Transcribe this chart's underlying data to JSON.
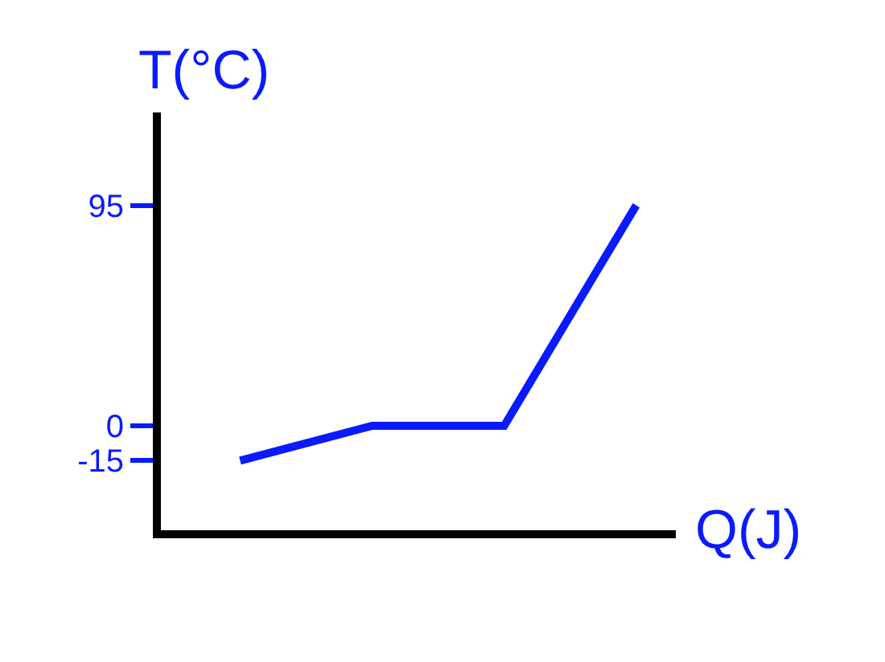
{
  "chart_data": {
    "type": "line",
    "xlabel": "Q(J)",
    "ylabel": "T(°C)",
    "categories": [
      null,
      null,
      null,
      null
    ],
    "series": [
      {
        "color": "#0a1aff",
        "values": [
          -15,
          0,
          0,
          95
        ]
      }
    ],
    "ylim": [
      -45,
      135
    ],
    "yticks": [
      -15,
      0,
      95
    ],
    "marker": "none",
    "line_style": "solid"
  }
}
